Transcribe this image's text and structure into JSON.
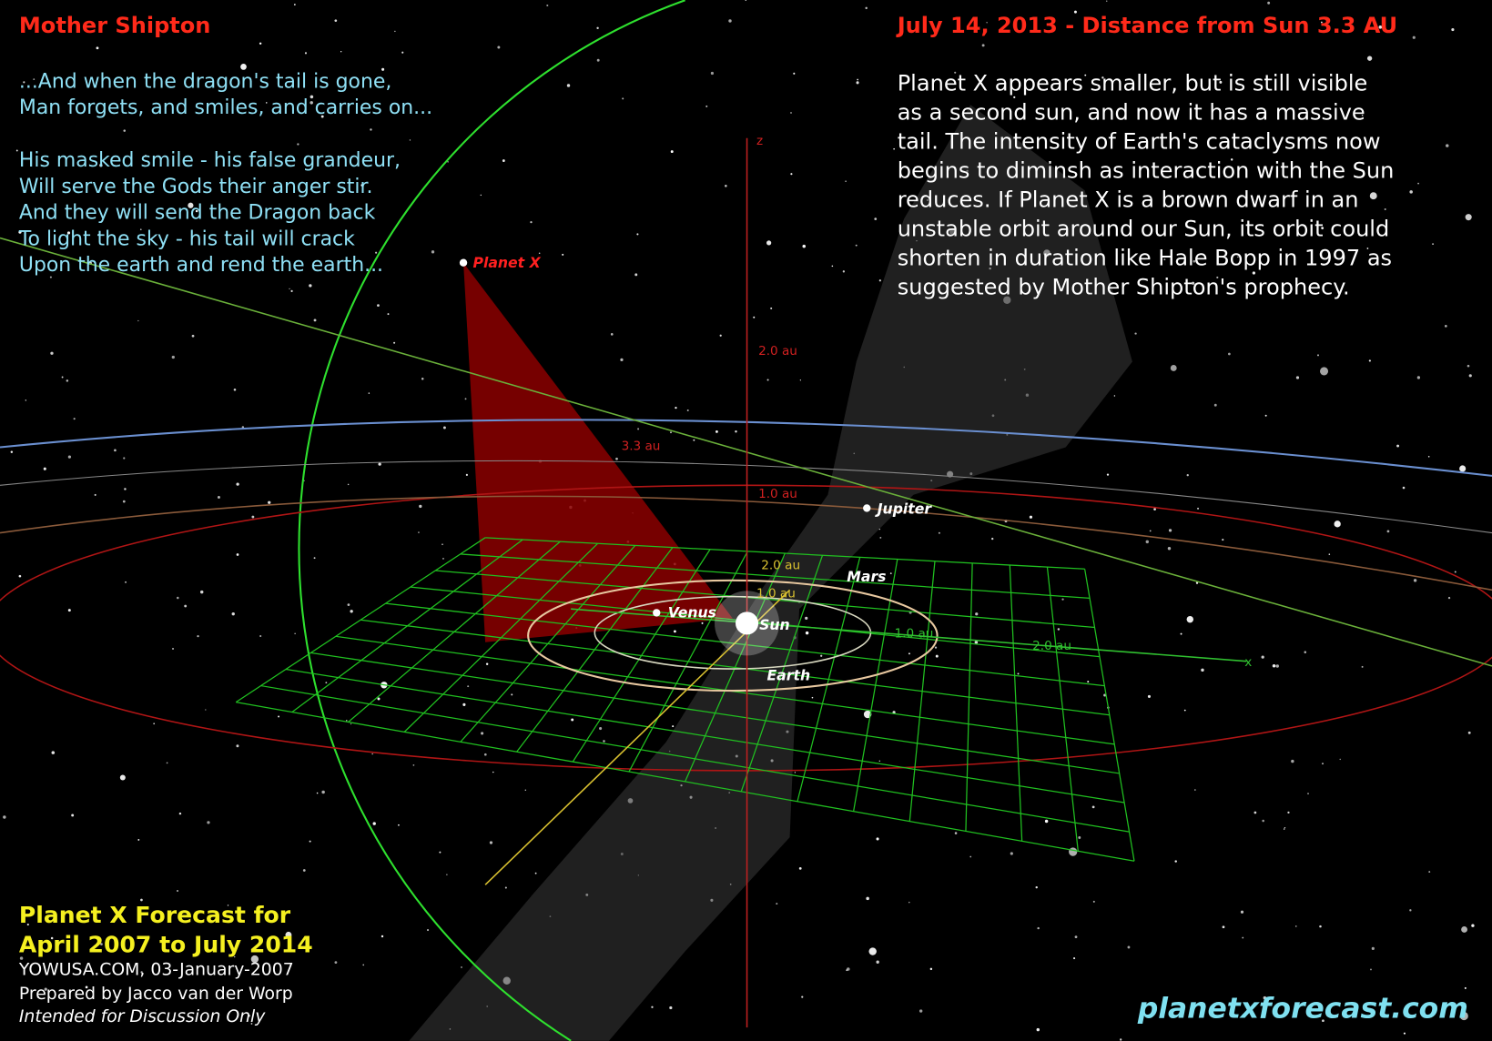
{
  "header": {
    "left_title": "Mother Shipton",
    "right_title": "July 14, 2013 - Distance from Sun 3.3 AU"
  },
  "poem": [
    "...And when the dragon's tail is gone,",
    "Man forgets, and smiles, and carries on...",
    "His masked smile - his false grandeur,",
    "Will serve the Gods their anger stir.",
    "And they will send the Dragon back",
    "To light the sky - his tail will crack",
    "Upon the earth and rend the earth..."
  ],
  "description": [
    "Planet X appears smaller, but is still visible",
    "as a second sun, and now it has a massive",
    "tail.  The intensity of Earth's cataclysms now",
    "begins to diminsh as interaction with the Sun",
    "reduces.  If Planet X is a brown dwarf in an",
    "unstable orbit around our Sun,  its orbit could",
    "shorten in duration like Hale Bopp in 1997 as",
    "suggested by Mother Shipton's prophecy."
  ],
  "bodies": {
    "planet_x": "Planet X",
    "jupiter": "Jupiter",
    "mars": "Mars",
    "venus": "Venus",
    "sun": "Sun",
    "earth": "Earth"
  },
  "axis_labels": {
    "z": "z",
    "x": "x",
    "z_2": "2.0 au",
    "z_33": "3.3 au",
    "z_1": "1.0 au",
    "y_2": "2.0 au",
    "y_1": "1.0 au",
    "x_1": "1.0 au",
    "x_2": "2.0 au"
  },
  "footer": {
    "line1": "Planet X Forecast for",
    "line2": "April 2007 to July 2014",
    "source": "YOWUSA.COM, 03-January-2007",
    "author": "Prepared by Jacco van der Worp",
    "note": "Intended for Discussion Only",
    "url": "planetxforecast.com"
  }
}
